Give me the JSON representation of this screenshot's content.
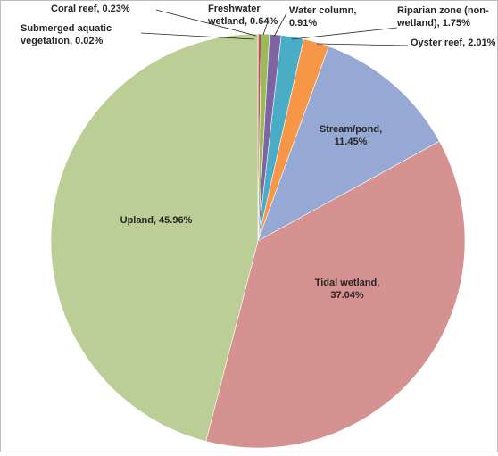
{
  "chart_data": {
    "type": "pie",
    "title": "",
    "start_angle_deg": 0,
    "direction": "clockwise",
    "slices": [
      {
        "label": "Submerged aquatic vegetation",
        "value": 0.02,
        "value_text": "0.02%",
        "label_lines": [
          "Submerged aquatic",
          "vegetation, 0.02%"
        ],
        "color": "#4F81BD"
      },
      {
        "label": "Coral reef",
        "value": 0.23,
        "value_text": "0.23%",
        "label_lines": [
          "Coral reef, 0.23%"
        ],
        "color": "#C0504D"
      },
      {
        "label": "Freshwater wetland",
        "value": 0.64,
        "value_text": "0.64%",
        "label_lines": [
          "Freshwater",
          "wetland, 0.64%"
        ],
        "color": "#9BBB59"
      },
      {
        "label": "Water column",
        "value": 0.91,
        "value_text": "0.91%",
        "label_lines": [
          "Water column,",
          "0.91%"
        ],
        "color": "#8064A2"
      },
      {
        "label": "Riparian zone (non-wetland)",
        "value": 1.75,
        "value_text": "1.75%",
        "label_lines": [
          "Riparian zone (non-",
          "wetland), 1.75%"
        ],
        "color": "#4BACC6"
      },
      {
        "label": "Oyster reef",
        "value": 2.01,
        "value_text": "2.01%",
        "label_lines": [
          "Oyster reef, 2.01%"
        ],
        "color": "#F79646"
      },
      {
        "label": "Stream/pond",
        "value": 11.45,
        "value_text": "11.45%",
        "label_lines": [
          "Stream/pond,",
          "11.45%"
        ],
        "color": "#95A9D4"
      },
      {
        "label": "Tidal wetland",
        "value": 37.04,
        "value_text": "37.04%",
        "label_lines": [
          "Tidal wetland,",
          "37.04%"
        ],
        "color": "#D59291"
      },
      {
        "label": "Upland",
        "value": 45.96,
        "value_text": "45.96%",
        "label_lines": [
          "Upland, 45.96%"
        ],
        "color": "#BBCE96"
      }
    ]
  }
}
